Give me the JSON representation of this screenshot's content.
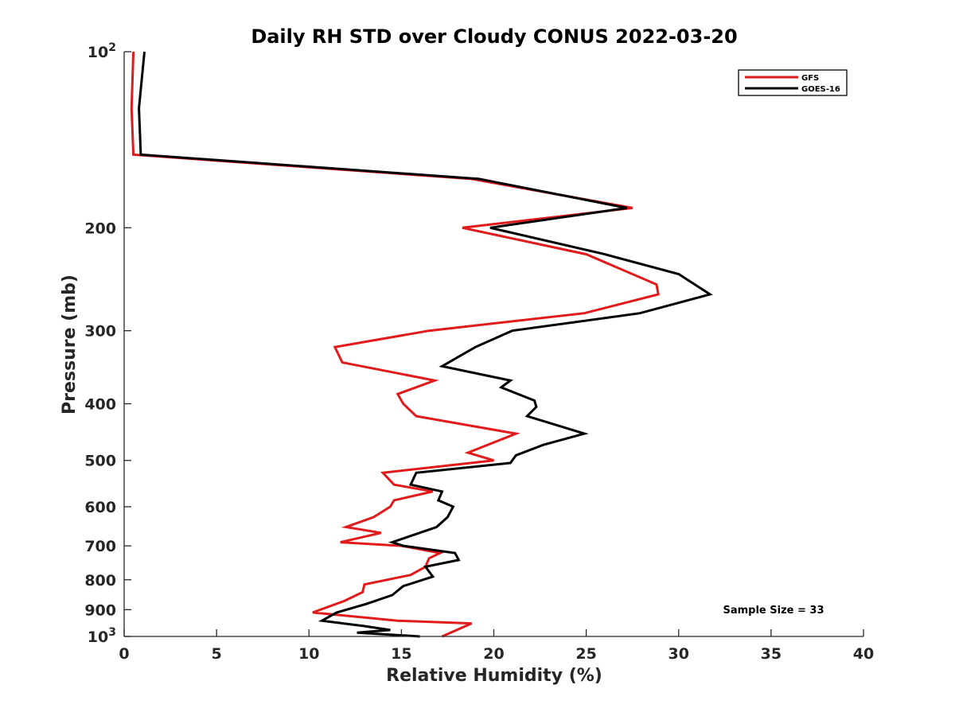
{
  "chart_data": {
    "type": "line",
    "title": "Daily RH STD over Cloudy CONUS 2022-03-20",
    "xlabel": "Relative Humidity (%)",
    "ylabel": "Pressure (mb)",
    "xlim": [
      0,
      40
    ],
    "ylim": [
      100,
      1000
    ],
    "y_scale": "log",
    "y_reversed": true,
    "x_ticks": [
      "0",
      "5",
      "10",
      "15",
      "20",
      "25",
      "30",
      "35",
      "40"
    ],
    "y_ticks": [
      {
        "value": 100,
        "base": "10",
        "exp": "2"
      },
      {
        "value": 200,
        "label": "200"
      },
      {
        "value": 300,
        "label": "300"
      },
      {
        "value": 400,
        "label": "400"
      },
      {
        "value": 500,
        "label": "500"
      },
      {
        "value": 600,
        "label": "600"
      },
      {
        "value": 700,
        "label": "700"
      },
      {
        "value": 800,
        "label": "800"
      },
      {
        "value": 900,
        "label": "900"
      },
      {
        "value": 1000,
        "base": "10",
        "exp": "3"
      }
    ],
    "grid": false,
    "legend_position": "top-right",
    "annotation": "Sample Size = 33",
    "series": [
      {
        "name": "GFS",
        "color": "#e31a1c",
        "points": [
          [
            0.5,
            100
          ],
          [
            0.4,
            125
          ],
          [
            0.5,
            150
          ],
          [
            18.8,
            165
          ],
          [
            27.5,
            185
          ],
          [
            18.3,
            200
          ],
          [
            25.0,
            222
          ],
          [
            28.8,
            250
          ],
          [
            28.9,
            260
          ],
          [
            24.9,
            280
          ],
          [
            16.5,
            300
          ],
          [
            11.4,
            320
          ],
          [
            11.8,
            340
          ],
          [
            16.8,
            365
          ],
          [
            14.8,
            385
          ],
          [
            15.1,
            400
          ],
          [
            15.8,
            420
          ],
          [
            21.2,
            450
          ],
          [
            18.6,
            485
          ],
          [
            20.0,
            500
          ],
          [
            14.0,
            525
          ],
          [
            14.6,
            550
          ],
          [
            16.7,
            565
          ],
          [
            14.6,
            585
          ],
          [
            14.4,
            600
          ],
          [
            13.5,
            625
          ],
          [
            12.0,
            650
          ],
          [
            13.9,
            665
          ],
          [
            11.7,
            690
          ],
          [
            15.0,
            700
          ],
          [
            17.1,
            720
          ],
          [
            16.5,
            735
          ],
          [
            16.3,
            760
          ],
          [
            15.5,
            785
          ],
          [
            13.0,
            815
          ],
          [
            12.9,
            840
          ],
          [
            11.9,
            870
          ],
          [
            10.2,
            910
          ],
          [
            14.8,
            940
          ],
          [
            18.8,
            950
          ],
          [
            17.2,
            1000
          ]
        ]
      },
      {
        "name": "GOES-16",
        "color": "#000000",
        "points": [
          [
            1.1,
            100
          ],
          [
            0.8,
            125
          ],
          [
            0.9,
            150
          ],
          [
            19.2,
            165
          ],
          [
            27.2,
            185
          ],
          [
            19.8,
            200
          ],
          [
            26.0,
            222
          ],
          [
            30.0,
            240
          ],
          [
            31.7,
            260
          ],
          [
            27.9,
            280
          ],
          [
            21.0,
            300
          ],
          [
            19.0,
            320
          ],
          [
            17.2,
            345
          ],
          [
            20.9,
            365
          ],
          [
            20.4,
            375
          ],
          [
            22.2,
            395
          ],
          [
            22.3,
            405
          ],
          [
            21.8,
            420
          ],
          [
            24.9,
            450
          ],
          [
            22.7,
            470
          ],
          [
            21.2,
            490
          ],
          [
            20.9,
            505
          ],
          [
            15.8,
            525
          ],
          [
            15.5,
            550
          ],
          [
            17.2,
            565
          ],
          [
            17.0,
            585
          ],
          [
            17.8,
            600
          ],
          [
            17.5,
            625
          ],
          [
            16.9,
            650
          ],
          [
            14.5,
            690
          ],
          [
            15.1,
            700
          ],
          [
            17.9,
            720
          ],
          [
            18.1,
            740
          ],
          [
            16.3,
            760
          ],
          [
            16.7,
            790
          ],
          [
            15.1,
            820
          ],
          [
            14.5,
            850
          ],
          [
            13.1,
            880
          ],
          [
            11.5,
            910
          ],
          [
            10.7,
            940
          ],
          [
            13.0,
            960
          ],
          [
            14.4,
            975
          ],
          [
            12.6,
            985
          ],
          [
            16.0,
            1000
          ]
        ]
      }
    ]
  }
}
